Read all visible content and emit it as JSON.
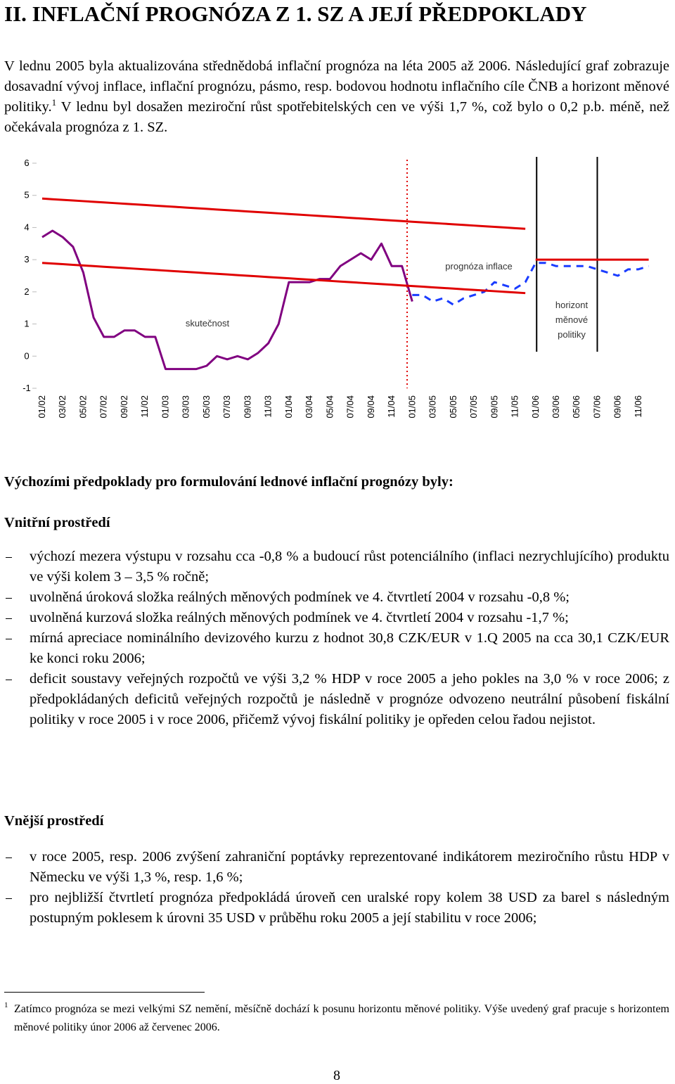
{
  "header": {
    "title": "II. INFLAČNÍ PROGNÓZA Z 1. SZ A JEJÍ PŘEDPOKLADY"
  },
  "intro": {
    "text1": "V lednu 2005 byla aktualizována střednědobá inflační prognóza na léta 2005 až 2006. Následující graf zobrazuje dosavadní vývoj inflace, inflační prognózu, pásmo, resp. bodovou hodnotu inflačního cíle ČNB a horizont měnové politiky.",
    "footnote_ref": "1",
    "text2": "V lednu byl dosažen meziroční růst spotřebitelských cen ve výši 1,7 %, což bylo o 0,2 p.b. méně, než očekávala prognóza z 1. SZ."
  },
  "chart_data": {
    "type": "line",
    "categories": [
      "01/02",
      null,
      "03/02",
      null,
      "05/02",
      null,
      "07/02",
      null,
      "09/02",
      null,
      "11/02",
      null,
      "01/03",
      null,
      "03/03",
      null,
      "05/03",
      null,
      "07/03",
      null,
      "09/03",
      null,
      "11/03",
      null,
      "01/04",
      null,
      "03/04",
      null,
      "05/04",
      null,
      "07/04",
      null,
      "09/04",
      null,
      "11/04",
      null,
      "01/05",
      null,
      "03/05",
      null,
      "05/05",
      null,
      "07/05",
      null,
      "09/05",
      null,
      "11/05",
      null,
      "01/06",
      null,
      "03/06",
      null,
      "05/06",
      null,
      "07/06",
      null,
      "09/06",
      null,
      "11/06",
      null
    ],
    "ylim": [
      -1,
      6
    ],
    "yticks": [
      -1,
      0,
      1,
      2,
      3,
      4,
      5,
      6
    ],
    "series": [
      {
        "name": "skutečnost",
        "color": "#800080",
        "style": "solid",
        "values": [
          3.7,
          3.9,
          3.7,
          3.4,
          2.6,
          1.2,
          0.6,
          0.6,
          0.8,
          0.8,
          0.6,
          0.6,
          -0.4,
          -0.4,
          -0.4,
          -0.4,
          -0.3,
          0.0,
          -0.1,
          0.0,
          -0.1,
          0.1,
          0.4,
          1.0,
          2.3,
          2.3,
          2.3,
          2.4,
          2.4,
          2.8,
          3.0,
          3.2,
          3.0,
          3.5,
          2.8,
          2.8,
          1.7,
          null,
          null,
          null,
          null,
          null,
          null,
          null,
          null,
          null,
          null,
          null,
          null,
          null,
          null,
          null,
          null,
          null,
          null,
          null,
          null,
          null,
          null,
          null
        ]
      },
      {
        "name": "prognóza inflace",
        "color": "#1a3cff",
        "style": "dashed",
        "values": [
          null,
          null,
          null,
          null,
          null,
          null,
          null,
          null,
          null,
          null,
          null,
          null,
          null,
          null,
          null,
          null,
          null,
          null,
          null,
          null,
          null,
          null,
          null,
          null,
          null,
          null,
          null,
          null,
          null,
          null,
          null,
          null,
          null,
          null,
          null,
          null,
          1.9,
          1.9,
          1.7,
          1.8,
          1.6,
          1.8,
          1.9,
          2.0,
          2.3,
          2.2,
          2.1,
          2.3,
          2.9,
          2.9,
          2.8,
          2.8,
          2.8,
          2.8,
          2.7,
          2.6,
          2.5,
          2.7,
          2.7,
          2.8
        ]
      },
      {
        "color": "#e00000",
        "style": "solid",
        "values": [
          4.9,
          4.88,
          4.86,
          4.84,
          4.82,
          4.8,
          4.78,
          4.76,
          4.74,
          4.72,
          4.7,
          4.68,
          4.66,
          4.64,
          4.62,
          4.6,
          4.58,
          4.56,
          4.54,
          4.52,
          4.5,
          4.48,
          4.46,
          4.44,
          4.42,
          4.4,
          4.38,
          4.36,
          4.34,
          4.32,
          4.3,
          4.28,
          4.26,
          4.24,
          4.22,
          4.2,
          4.18,
          4.16,
          4.14,
          4.12,
          4.1,
          4.08,
          4.06,
          4.04,
          4.02,
          4.0,
          3.98,
          3.96,
          null,
          null,
          null,
          null,
          null,
          null,
          null,
          null,
          null,
          null,
          null,
          null
        ]
      },
      {
        "color": "#e00000",
        "style": "solid",
        "values": [
          2.9,
          2.88,
          2.86,
          2.84,
          2.82,
          2.8,
          2.78,
          2.76,
          2.74,
          2.72,
          2.7,
          2.68,
          2.66,
          2.64,
          2.62,
          2.6,
          2.58,
          2.56,
          2.54,
          2.52,
          2.5,
          2.48,
          2.46,
          2.44,
          2.42,
          2.4,
          2.38,
          2.36,
          2.34,
          2.32,
          2.3,
          2.28,
          2.26,
          2.24,
          2.22,
          2.2,
          2.18,
          2.16,
          2.14,
          2.12,
          2.1,
          2.08,
          2.06,
          2.04,
          2.02,
          2.0,
          1.98,
          1.96,
          null,
          null,
          null,
          null,
          null,
          null,
          null,
          null,
          null,
          null,
          null,
          null
        ]
      },
      {
        "color": "#e00000",
        "style": "solid",
        "values": [
          null,
          null,
          null,
          null,
          null,
          null,
          null,
          null,
          null,
          null,
          null,
          null,
          null,
          null,
          null,
          null,
          null,
          null,
          null,
          null,
          null,
          null,
          null,
          null,
          null,
          null,
          null,
          null,
          null,
          null,
          null,
          null,
          null,
          null,
          null,
          null,
          null,
          null,
          null,
          null,
          null,
          null,
          null,
          null,
          null,
          null,
          null,
          null,
          3.0,
          3.0,
          3.0,
          3.0,
          3.0,
          3.0,
          3.0,
          3.0,
          3.0,
          3.0,
          3.0,
          3.0
        ]
      }
    ],
    "vlines": [
      {
        "x": 35.5,
        "color": "#e00000",
        "style": "dotted"
      },
      {
        "x": 48.1,
        "color": "#000000",
        "style": "solid"
      },
      {
        "x": 54,
        "color": "#000000",
        "style": "solid"
      }
    ],
    "horizon_label": [
      "horizont",
      "měnové",
      "politiky"
    ]
  },
  "sections": {
    "heading": "Výchozími předpoklady pro formulování lednové inflační prognózy byly:",
    "internal": {
      "title": "Vnitřní prostředí",
      "items": [
        "výchozí mezera výstupu v rozsahu cca -0,8 % a budoucí růst potenciálního (inflaci nezrychlujícího) produktu ve výši kolem 3 – 3,5 % ročně;",
        "uvolněná úroková složka reálných měnových podmínek ve 4. čtvrtletí 2004 v rozsahu -0,8 %;",
        "uvolněná kurzová složka reálných měnových podmínek ve 4. čtvrtletí 2004 v rozsahu -1,7 %;",
        "mírná apreciace nominálního devizového kurzu z hodnot 30,8 CZK/EUR v 1.Q 2005 na cca 30,1 CZK/EUR ke konci roku 2006;",
        "deficit soustavy veřejných rozpočtů ve výši 3,2 % HDP v roce 2005 a jeho pokles na 3,0 % v roce 2006; z předpokládaných deficitů veřejných rozpočtů je následně v prognóze odvozeno neutrální působení fiskální politiky v roce 2005 i v roce 2006, přičemž vývoj fiskální politiky je opředen celou řadou nejistot."
      ]
    },
    "external": {
      "title": "Vnější prostředí",
      "items": [
        "v roce 2005, resp. 2006 zvýšení zahraniční poptávky reprezentované indikátorem meziročního růstu HDP v Německu ve výši 1,3 %, resp. 1,6 %;",
        "pro nejbližší čtvrtletí prognóza předpokládá úroveň cen uralské ropy kolem 38 USD za barel s následným postupným poklesem k úrovni 35 USD v průběhu roku 2005 a její stabilitu v roce 2006;"
      ]
    }
  },
  "footnote": {
    "mark": "1",
    "text": "Zatímco prognóza se mezi velkými SZ nemění, měsíčně dochází k posunu horizontu měnové politiky. Výše uvedený graf pracuje s horizontem měnové politiky únor 2006 až červenec 2006."
  },
  "page_number": "8"
}
